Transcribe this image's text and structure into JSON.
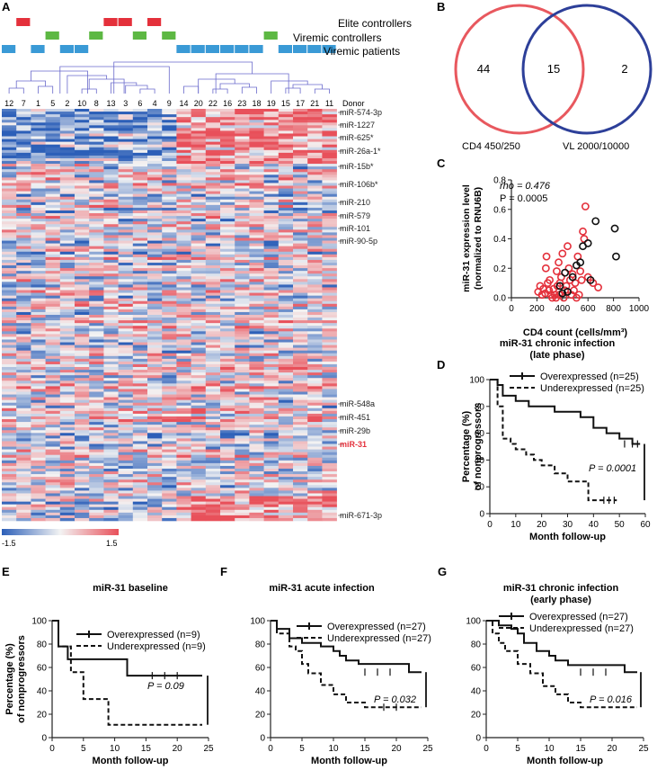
{
  "colors": {
    "elite": "#e4303b",
    "viremic_ctrl": "#5db843",
    "viremic_pat": "#3a9ad6",
    "dendro": "#6a6acb",
    "heat_low": "#2c5fb8",
    "heat_mid": "#f3f3f3",
    "heat_high": "#e8505a",
    "venn_red": "#e8585e",
    "venn_blue": "#2d3f99",
    "red_text": "#e4303b",
    "line": "#222222"
  },
  "panel_labels": {
    "A": "A",
    "B": "B",
    "C": "C",
    "D": "D",
    "E": "E",
    "F": "F",
    "G": "G"
  },
  "panel_a": {
    "legend": {
      "elite": "Elite controllers",
      "viremic_ctrl": "Viremic controllers",
      "viremic_pat": "Viremic patients"
    },
    "donor_label": "Donor",
    "donors": [
      "12",
      "7",
      "1",
      "5",
      "2",
      "10",
      "8",
      "13",
      "3",
      "6",
      "4",
      "9",
      "14",
      "20",
      "22",
      "16",
      "23",
      "18",
      "19",
      "15",
      "17",
      "21",
      "11"
    ],
    "groups": [
      "P",
      "E",
      "P",
      "C",
      "P",
      "P",
      "C",
      "E",
      "E",
      "C",
      "E",
      "C",
      "P",
      "P",
      "P",
      "P",
      "P",
      "P",
      "C",
      "P",
      "P",
      "P",
      "P"
    ],
    "mirna": [
      {
        "name": "miR-574-3p",
        "highlight": false
      },
      {
        "name": "miR-1227",
        "highlight": false
      },
      {
        "name": "miR-625*",
        "highlight": false
      },
      {
        "name": "miR-26a-1*",
        "highlight": false
      },
      {
        "name": "miR-15b*",
        "highlight": false
      },
      {
        "name": "miR-106b*",
        "highlight": false
      },
      {
        "name": "miR-210",
        "highlight": false
      },
      {
        "name": "miR-579",
        "highlight": false
      },
      {
        "name": "miR-101",
        "highlight": false
      },
      {
        "name": "miR-90-5p",
        "highlight": false
      },
      {
        "name": "miR-548a",
        "highlight": false
      },
      {
        "name": "miR-451",
        "highlight": false
      },
      {
        "name": "miR-29b",
        "highlight": false
      },
      {
        "name": "miR-31",
        "highlight": true
      },
      {
        "name": "miR-671-3p",
        "highlight": false
      }
    ],
    "scale_min": "-1.5",
    "scale_max": "1.5"
  },
  "panel_b": {
    "left_only": "44",
    "overlap": "15",
    "right_only": "2",
    "left_label": "CD4 450/250",
    "right_label": "VL 2000/10000"
  },
  "panel_c": {
    "chart_data": {
      "type": "scatter",
      "ylabel_line1": "miR-31 expression level",
      "ylabel_line2": "(normalized to RNU6B)",
      "xlabel": "CD4 count (cells/mm³)",
      "rho_text": "rho = 0.476",
      "p_text": "P = 0.0005",
      "xlim": [
        0,
        1000
      ],
      "ylim": [
        0,
        0.8
      ],
      "xticks": [
        "0",
        "200",
        "400",
        "600",
        "800",
        "1000"
      ],
      "yticks": [
        "0.0",
        "0.2",
        "0.4",
        "0.6",
        "0.8"
      ],
      "series": [
        {
          "name": "red",
          "points": [
            [
              210,
              0.04
            ],
            [
              225,
              0.08
            ],
            [
              240,
              0.02
            ],
            [
              250,
              0.06
            ],
            [
              265,
              0.03
            ],
            [
              270,
              0.2
            ],
            [
              275,
              0.28
            ],
            [
              285,
              0.1
            ],
            [
              295,
              0.05
            ],
            [
              300,
              0.12
            ],
            [
              310,
              0.02
            ],
            [
              320,
              0.0
            ],
            [
              330,
              0.06
            ],
            [
              340,
              0.02
            ],
            [
              350,
              0.0
            ],
            [
              355,
              0.18
            ],
            [
              360,
              0.08
            ],
            [
              370,
              0.24
            ],
            [
              375,
              0.02
            ],
            [
              380,
              0.1
            ],
            [
              390,
              0.14
            ],
            [
              400,
              0.3
            ],
            [
              410,
              0.0
            ],
            [
              420,
              0.05
            ],
            [
              430,
              0.08
            ],
            [
              440,
              0.35
            ],
            [
              450,
              0.2
            ],
            [
              460,
              0.12
            ],
            [
              470,
              0.02
            ],
            [
              480,
              0.16
            ],
            [
              490,
              0.05
            ],
            [
              500,
              0.1
            ],
            [
              510,
              0.0
            ],
            [
              520,
              0.28
            ],
            [
              530,
              0.02
            ],
            [
              540,
              0.18
            ],
            [
              550,
              0.12
            ],
            [
              560,
              0.45
            ],
            [
              570,
              0.4
            ],
            [
              580,
              0.62
            ],
            [
              600,
              0.14
            ],
            [
              640,
              0.1
            ],
            [
              680,
              0.07
            ]
          ]
        },
        {
          "name": "black",
          "points": [
            [
              380,
              0.08
            ],
            [
              400,
              0.03
            ],
            [
              420,
              0.17
            ],
            [
              440,
              0.04
            ],
            [
              480,
              0.14
            ],
            [
              510,
              0.22
            ],
            [
              540,
              0.24
            ],
            [
              560,
              0.35
            ],
            [
              600,
              0.37
            ],
            [
              620,
              0.12
            ],
            [
              660,
              0.52
            ],
            [
              810,
              0.47
            ],
            [
              820,
              0.28
            ]
          ]
        }
      ]
    }
  },
  "panel_d": {
    "chart_data": {
      "type": "line",
      "title_line1": "miR-31 chronic infection",
      "title_line2": "(late phase)",
      "legend_over": "Overexpressed (n=25)",
      "legend_under": "Underexpressed (n=25)",
      "ylabel_line1": "Percentage (%)",
      "ylabel_line2": "of nonprogressors",
      "xlabel": "Month follow-up",
      "pvalue": "P = 0.0001",
      "xlim": [
        0,
        60
      ],
      "ylim": [
        0,
        100
      ],
      "xticks": [
        "0",
        "10",
        "20",
        "30",
        "40",
        "50",
        "60"
      ],
      "yticks": [
        "0",
        "20",
        "40",
        "60",
        "80",
        "100"
      ],
      "series": [
        {
          "name": "over",
          "points": [
            [
              0,
              100
            ],
            [
              3,
              100
            ],
            [
              3,
              96
            ],
            [
              5,
              96
            ],
            [
              5,
              88
            ],
            [
              10,
              88
            ],
            [
              10,
              84
            ],
            [
              15,
              84
            ],
            [
              15,
              80
            ],
            [
              25,
              80
            ],
            [
              25,
              76
            ],
            [
              35,
              76
            ],
            [
              35,
              72
            ],
            [
              40,
              72
            ],
            [
              40,
              64
            ],
            [
              45,
              64
            ],
            [
              45,
              60
            ],
            [
              50,
              60
            ],
            [
              50,
              56
            ],
            [
              55,
              56
            ],
            [
              55,
              52
            ],
            [
              58,
              52
            ]
          ],
          "ticks": [
            52,
            55,
            57
          ]
        },
        {
          "name": "under",
          "points": [
            [
              0,
              100
            ],
            [
              3,
              100
            ],
            [
              3,
              80
            ],
            [
              5,
              80
            ],
            [
              5,
              56
            ],
            [
              8,
              56
            ],
            [
              8,
              52
            ],
            [
              10,
              52
            ],
            [
              10,
              48
            ],
            [
              14,
              48
            ],
            [
              14,
              44
            ],
            [
              17,
              44
            ],
            [
              17,
              40
            ],
            [
              20,
              40
            ],
            [
              20,
              36
            ],
            [
              25,
              36
            ],
            [
              25,
              30
            ],
            [
              30,
              30
            ],
            [
              30,
              24
            ],
            [
              38,
              24
            ],
            [
              38,
              10
            ],
            [
              49,
              10
            ]
          ],
          "ticks": [
            44,
            46,
            48
          ]
        }
      ]
    }
  },
  "panel_e": {
    "chart_data": {
      "type": "line",
      "title_line1": "miR-31 baseline",
      "legend_over": "Overexpressed (n=9)",
      "legend_under": "Underexpressed (n=9)",
      "ylabel_line1": "Percentage (%)",
      "ylabel_line2": "of nonprogressors",
      "xlabel": "Month follow-up",
      "pvalue": "P = 0.09",
      "xlim": [
        0,
        25
      ],
      "ylim": [
        0,
        100
      ],
      "xticks": [
        "0",
        "5",
        "10",
        "15",
        "20",
        "25"
      ],
      "yticks": [
        "0",
        "20",
        "40",
        "60",
        "80",
        "100"
      ],
      "series": [
        {
          "name": "over",
          "points": [
            [
              0,
              100
            ],
            [
              1,
              100
            ],
            [
              1,
              78
            ],
            [
              2.5,
              78
            ],
            [
              2.5,
              67
            ],
            [
              12,
              67
            ],
            [
              12,
              53
            ],
            [
              24,
              53
            ]
          ],
          "ticks": [
            16,
            18,
            20
          ]
        },
        {
          "name": "under",
          "points": [
            [
              0,
              100
            ],
            [
              1,
              100
            ],
            [
              1,
              78
            ],
            [
              3,
              78
            ],
            [
              3,
              56
            ],
            [
              5,
              56
            ],
            [
              5,
              33
            ],
            [
              9,
              33
            ],
            [
              9,
              11
            ],
            [
              24,
              11
            ]
          ],
          "ticks": []
        }
      ]
    }
  },
  "panel_f": {
    "chart_data": {
      "type": "line",
      "title_line1": "miR-31 acute infection",
      "legend_over": "Overexpressed (n=27)",
      "legend_under": "Underexpressed (n=27)",
      "xlabel": "Month follow-up",
      "pvalue": "P = 0.032",
      "xlim": [
        0,
        25
      ],
      "ylim": [
        0,
        100
      ],
      "xticks": [
        "0",
        "5",
        "10",
        "15",
        "20",
        "25"
      ],
      "yticks": [
        "0",
        "20",
        "40",
        "60",
        "80",
        "100"
      ],
      "series": [
        {
          "name": "over",
          "points": [
            [
              0,
              100
            ],
            [
              1,
              100
            ],
            [
              1,
              93
            ],
            [
              3,
              93
            ],
            [
              3,
              85
            ],
            [
              5,
              85
            ],
            [
              5,
              81
            ],
            [
              8,
              81
            ],
            [
              8,
              78
            ],
            [
              10,
              78
            ],
            [
              10,
              74
            ],
            [
              11,
              74
            ],
            [
              11,
              70
            ],
            [
              12,
              70
            ],
            [
              12,
              66
            ],
            [
              14,
              66
            ],
            [
              14,
              63
            ],
            [
              22,
              63
            ],
            [
              22,
              56
            ],
            [
              24,
              56
            ]
          ],
          "ticks": [
            15,
            17,
            19
          ]
        },
        {
          "name": "under",
          "points": [
            [
              0,
              100
            ],
            [
              1,
              100
            ],
            [
              1,
              89
            ],
            [
              3,
              89
            ],
            [
              3,
              78
            ],
            [
              4,
              78
            ],
            [
              4,
              74
            ],
            [
              5,
              74
            ],
            [
              5,
              63
            ],
            [
              6,
              63
            ],
            [
              6,
              55
            ],
            [
              8,
              55
            ],
            [
              8,
              45
            ],
            [
              10,
              45
            ],
            [
              10,
              37
            ],
            [
              12,
              37
            ],
            [
              12,
              30
            ],
            [
              15,
              30
            ],
            [
              15,
              26
            ],
            [
              24,
              26
            ]
          ],
          "ticks": [
            18,
            20
          ]
        }
      ]
    }
  },
  "panel_g": {
    "chart_data": {
      "type": "line",
      "title_line1": "miR-31 chronic infection",
      "title_line2": "(early phase)",
      "legend_over": "Overexpressed (n=27)",
      "legend_under": "Underexpressed (n=27)",
      "xlabel": "Month follow-up",
      "pvalue": "P = 0.016",
      "xlim": [
        0,
        25
      ],
      "ylim": [
        0,
        100
      ],
      "xticks": [
        "0",
        "5",
        "10",
        "15",
        "20",
        "25"
      ],
      "yticks": [
        "0",
        "20",
        "40",
        "60",
        "80",
        "100"
      ],
      "series": [
        {
          "name": "over",
          "points": [
            [
              0,
              100
            ],
            [
              2,
              100
            ],
            [
              2,
              96
            ],
            [
              4,
              96
            ],
            [
              4,
              93
            ],
            [
              5,
              93
            ],
            [
              5,
              89
            ],
            [
              6,
              89
            ],
            [
              6,
              81
            ],
            [
              8,
              81
            ],
            [
              8,
              74
            ],
            [
              10,
              74
            ],
            [
              10,
              70
            ],
            [
              11,
              70
            ],
            [
              11,
              66
            ],
            [
              13,
              66
            ],
            [
              13,
              62
            ],
            [
              22,
              62
            ],
            [
              22,
              56
            ],
            [
              24,
              56
            ]
          ],
          "ticks": [
            15,
            17,
            19
          ]
        },
        {
          "name": "under",
          "points": [
            [
              0,
              100
            ],
            [
              1,
              100
            ],
            [
              1,
              89
            ],
            [
              2,
              89
            ],
            [
              2,
              81
            ],
            [
              3,
              81
            ],
            [
              3,
              74
            ],
            [
              5,
              74
            ],
            [
              5,
              63
            ],
            [
              7,
              63
            ],
            [
              7,
              55
            ],
            [
              9,
              55
            ],
            [
              9,
              44
            ],
            [
              11,
              44
            ],
            [
              11,
              37
            ],
            [
              13,
              37
            ],
            [
              13,
              30
            ],
            [
              15,
              30
            ],
            [
              15,
              26
            ],
            [
              24,
              26
            ]
          ],
          "ticks": []
        }
      ]
    }
  }
}
